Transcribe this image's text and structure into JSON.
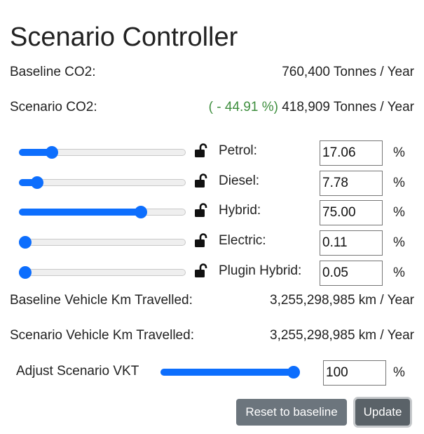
{
  "title": "Scenario Controller",
  "baseline_co2": {
    "label": "Baseline CO2:",
    "value": "760,400 Tonnes / Year"
  },
  "scenario_co2": {
    "label": "Scenario CO2:",
    "change": "( - 44.91 %)",
    "value": "418,909 Tonnes / Year"
  },
  "fuels": [
    {
      "label": "Petrol:",
      "value": "17.06",
      "unit": "%",
      "slider_fraction": 0.1706,
      "lock_icon": "unlocked-padlock-icon"
    },
    {
      "label": "Diesel:",
      "value": "7.78",
      "unit": "%",
      "slider_fraction": 0.0778,
      "lock_icon": "unlocked-padlock-icon"
    },
    {
      "label": "Hybrid:",
      "value": "75.00",
      "unit": "%",
      "slider_fraction": 0.75,
      "lock_icon": "unlocked-padlock-icon"
    },
    {
      "label": "Electric:",
      "value": "0.11",
      "unit": "%",
      "slider_fraction": 0.0011,
      "lock_icon": "unlocked-padlock-icon"
    },
    {
      "label": "Plugin Hybrid:",
      "value": "0.05",
      "unit": "%",
      "slider_fraction": 0.0005,
      "lock_icon": "unlocked-padlock-icon"
    }
  ],
  "baseline_vkt": {
    "label": "Baseline Vehicle Km Travelled:",
    "value": "3,255,298,985 km / Year"
  },
  "scenario_vkt": {
    "label": "Scenario Vehicle Km Travelled:",
    "value": "3,255,298,985 km / Year"
  },
  "adjust_vkt": {
    "label": "Adjust Scenario VKT",
    "value": "100",
    "unit": "%",
    "slider_fraction": 1.0
  },
  "buttons": {
    "reset": "Reset to baseline",
    "update": "Update"
  },
  "colors": {
    "accent": "#0d6efd",
    "positive_change": "#3e8e3e",
    "button_gray": "#6c757d"
  }
}
